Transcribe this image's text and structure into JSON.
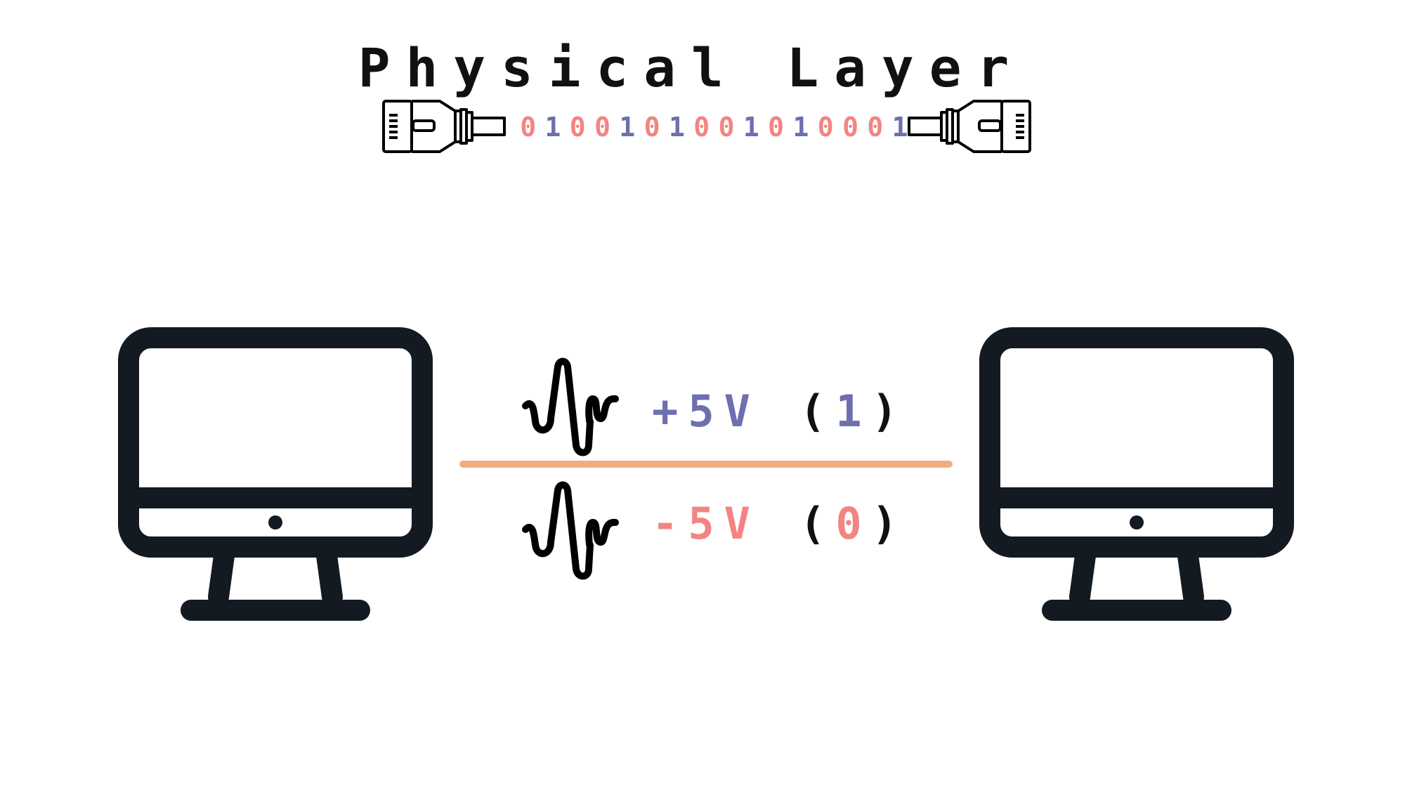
{
  "title": "Physical Layer",
  "bits": [
    "0",
    "1",
    "0",
    "0",
    "1",
    "0",
    "1",
    "0",
    "0",
    "1",
    "0",
    "1",
    "0",
    "0",
    "0",
    "1"
  ],
  "signals": {
    "high": {
      "voltage": "+5V",
      "open": "(",
      "bit": "1",
      "close": ")"
    },
    "low": {
      "voltage": "-5V",
      "open": "(",
      "bit": "0",
      "close": ")"
    }
  },
  "icons": {
    "left_plug": "ethernet-plug-icon",
    "right_plug": "ethernet-plug-icon",
    "left_computer": "computer-monitor-icon",
    "right_computer": "computer-monitor-icon",
    "waveform": "signal-wave-icon"
  },
  "colors": {
    "one": "#6d6fae",
    "zero": "#f28482",
    "line": "#f1ad80",
    "ink": "#131a21"
  }
}
